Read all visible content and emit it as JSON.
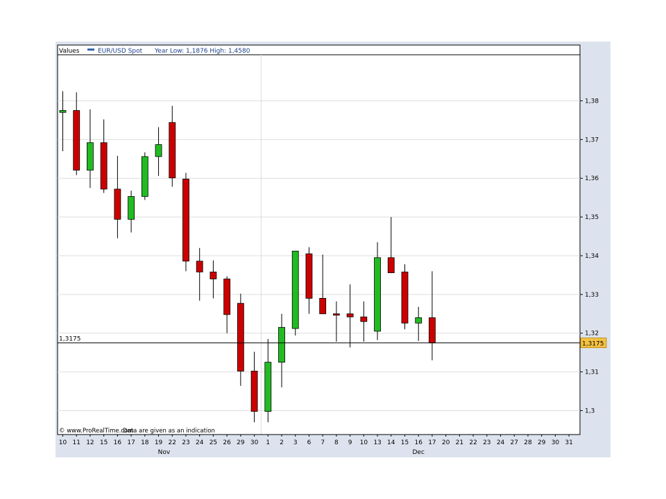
{
  "header": {
    "values_label": "Values",
    "series_name": "EUR/USD Spot",
    "year_range": "Year Low: 1,1876 High: 1,4580"
  },
  "footer": {
    "copyright": "© www.ProRealTime.com",
    "disclaimer": "Data are given as an indication"
  },
  "current_price": {
    "value": 1.3175,
    "label": "1,3175"
  },
  "colors": {
    "up": "#22bb22",
    "down": "#cc0000",
    "grid": "#dddddd",
    "marker": "#f5c242",
    "series": "#3366aa",
    "frame": "#dde3ee"
  },
  "chart_data": {
    "type": "candlestick",
    "ylim": [
      1.294,
      1.391
    ],
    "y_ticks": [
      1.3,
      1.31,
      1.32,
      1.33,
      1.34,
      1.35,
      1.36,
      1.37,
      1.38
    ],
    "y_tick_labels": [
      "1,3",
      "1,31",
      "1,32",
      "1,33",
      "1,34",
      "1,35",
      "1,36",
      "1,37",
      "1,38"
    ],
    "x_labels": [
      "10",
      "11",
      "12",
      "15",
      "16",
      "17",
      "18",
      "19",
      "22",
      "23",
      "24",
      "25",
      "26",
      "29",
      "30",
      "1",
      "2",
      "3",
      "6",
      "7",
      "8",
      "9",
      "10",
      "13",
      "14",
      "15",
      "16",
      "17",
      "20",
      "21",
      "22",
      "23",
      "24",
      "27",
      "28",
      "29",
      "30",
      "31"
    ],
    "month_labels": [
      {
        "text": "Nov",
        "index": 7.4
      },
      {
        "text": "Dec",
        "index": 26
      }
    ],
    "candles": [
      {
        "label": "10",
        "open": 1.377,
        "high": 1.3825,
        "low": 1.367,
        "close": 1.3775
      },
      {
        "label": "11",
        "open": 1.3775,
        "high": 1.3822,
        "low": 1.3608,
        "close": 1.3621
      },
      {
        "label": "12",
        "open": 1.3621,
        "high": 1.3778,
        "low": 1.3575,
        "close": 1.3692
      },
      {
        "label": "15",
        "open": 1.3692,
        "high": 1.3752,
        "low": 1.3562,
        "close": 1.3572
      },
      {
        "label": "16",
        "open": 1.3572,
        "high": 1.3658,
        "low": 1.3445,
        "close": 1.3494
      },
      {
        "label": "17",
        "open": 1.3494,
        "high": 1.3568,
        "low": 1.346,
        "close": 1.3553
      },
      {
        "label": "18",
        "open": 1.3553,
        "high": 1.3667,
        "low": 1.3544,
        "close": 1.3656
      },
      {
        "label": "19",
        "open": 1.3656,
        "high": 1.3732,
        "low": 1.3606,
        "close": 1.3687
      },
      {
        "label": "22",
        "open": 1.3744,
        "high": 1.3787,
        "low": 1.3578,
        "close": 1.3601
      },
      {
        "label": "23",
        "open": 1.3598,
        "high": 1.3614,
        "low": 1.336,
        "close": 1.3386
      },
      {
        "label": "24",
        "open": 1.3386,
        "high": 1.342,
        "low": 1.3284,
        "close": 1.3358
      },
      {
        "label": "25",
        "open": 1.3358,
        "high": 1.3388,
        "low": 1.329,
        "close": 1.334
      },
      {
        "label": "26",
        "open": 1.334,
        "high": 1.3347,
        "low": 1.32,
        "close": 1.3248
      },
      {
        "label": "29",
        "open": 1.3277,
        "high": 1.3302,
        "low": 1.3064,
        "close": 1.3102
      },
      {
        "label": "30",
        "open": 1.3102,
        "high": 1.3152,
        "low": 1.297,
        "close": 1.2998
      },
      {
        "label": "1",
        "open": 1.2998,
        "high": 1.3185,
        "low": 1.297,
        "close": 1.3125
      },
      {
        "label": "2",
        "open": 1.3125,
        "high": 1.325,
        "low": 1.306,
        "close": 1.3215
      },
      {
        "label": "3",
        "open": 1.3212,
        "high": 1.3412,
        "low": 1.3194,
        "close": 1.3412
      },
      {
        "label": "6",
        "open": 1.3405,
        "high": 1.3422,
        "low": 1.325,
        "close": 1.329
      },
      {
        "label": "7",
        "open": 1.329,
        "high": 1.3403,
        "low": 1.325,
        "close": 1.325
      },
      {
        "label": "8",
        "open": 1.325,
        "high": 1.3282,
        "low": 1.3178,
        "close": 1.3247
      },
      {
        "label": "9",
        "open": 1.325,
        "high": 1.3326,
        "low": 1.3163,
        "close": 1.3242
      },
      {
        "label": "10",
        "open": 1.3242,
        "high": 1.3282,
        "low": 1.3178,
        "close": 1.323
      },
      {
        "label": "13",
        "open": 1.3205,
        "high": 1.3435,
        "low": 1.3182,
        "close": 1.3395
      },
      {
        "label": "14",
        "open": 1.3395,
        "high": 1.35,
        "low": 1.3355,
        "close": 1.3356
      },
      {
        "label": "15",
        "open": 1.3358,
        "high": 1.3378,
        "low": 1.321,
        "close": 1.3226
      },
      {
        "label": "16",
        "open": 1.3226,
        "high": 1.3268,
        "low": 1.318,
        "close": 1.324
      },
      {
        "label": "17",
        "open": 1.324,
        "high": 1.336,
        "low": 1.313,
        "close": 1.3175
      }
    ]
  }
}
